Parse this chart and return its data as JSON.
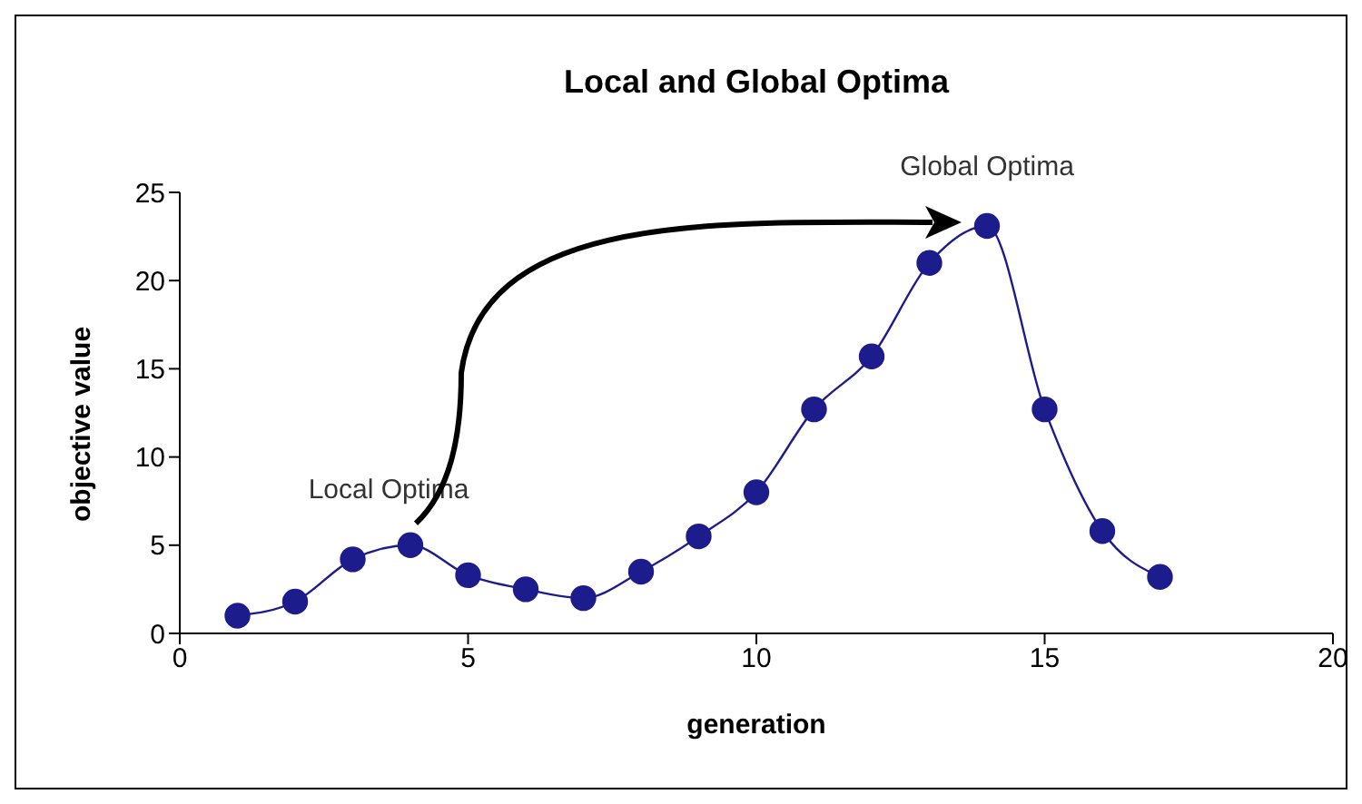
{
  "chart_data": {
    "type": "line",
    "title": "Local and Global Optima",
    "xlabel": "generation",
    "ylabel": "objective value",
    "x": [
      1,
      2,
      3,
      4,
      5,
      6,
      7,
      8,
      9,
      10,
      11,
      12,
      13,
      14,
      15,
      16,
      17
    ],
    "series": [
      {
        "color": "#1c1c8c",
        "values": [
          1,
          1.8,
          4.2,
          5,
          3.3,
          2.5,
          2,
          3.5,
          5.5,
          8,
          12.7,
          15.7,
          21,
          23.1,
          12.7,
          5.8,
          3.2
        ]
      }
    ],
    "xlim": [
      0,
      20
    ],
    "xticks": [
      0,
      5,
      10,
      15,
      20
    ],
    "ylim": [
      0,
      25
    ],
    "yticks": [
      0,
      5,
      10,
      15,
      20,
      25
    ],
    "grid": false,
    "legend": false,
    "marker": "circle",
    "line_style": "solid",
    "annotations": [
      {
        "text": "Local Optima",
        "x": 4,
        "y": 5
      },
      {
        "text": "Global Optima",
        "x": 14,
        "y": 23.1
      }
    ]
  }
}
